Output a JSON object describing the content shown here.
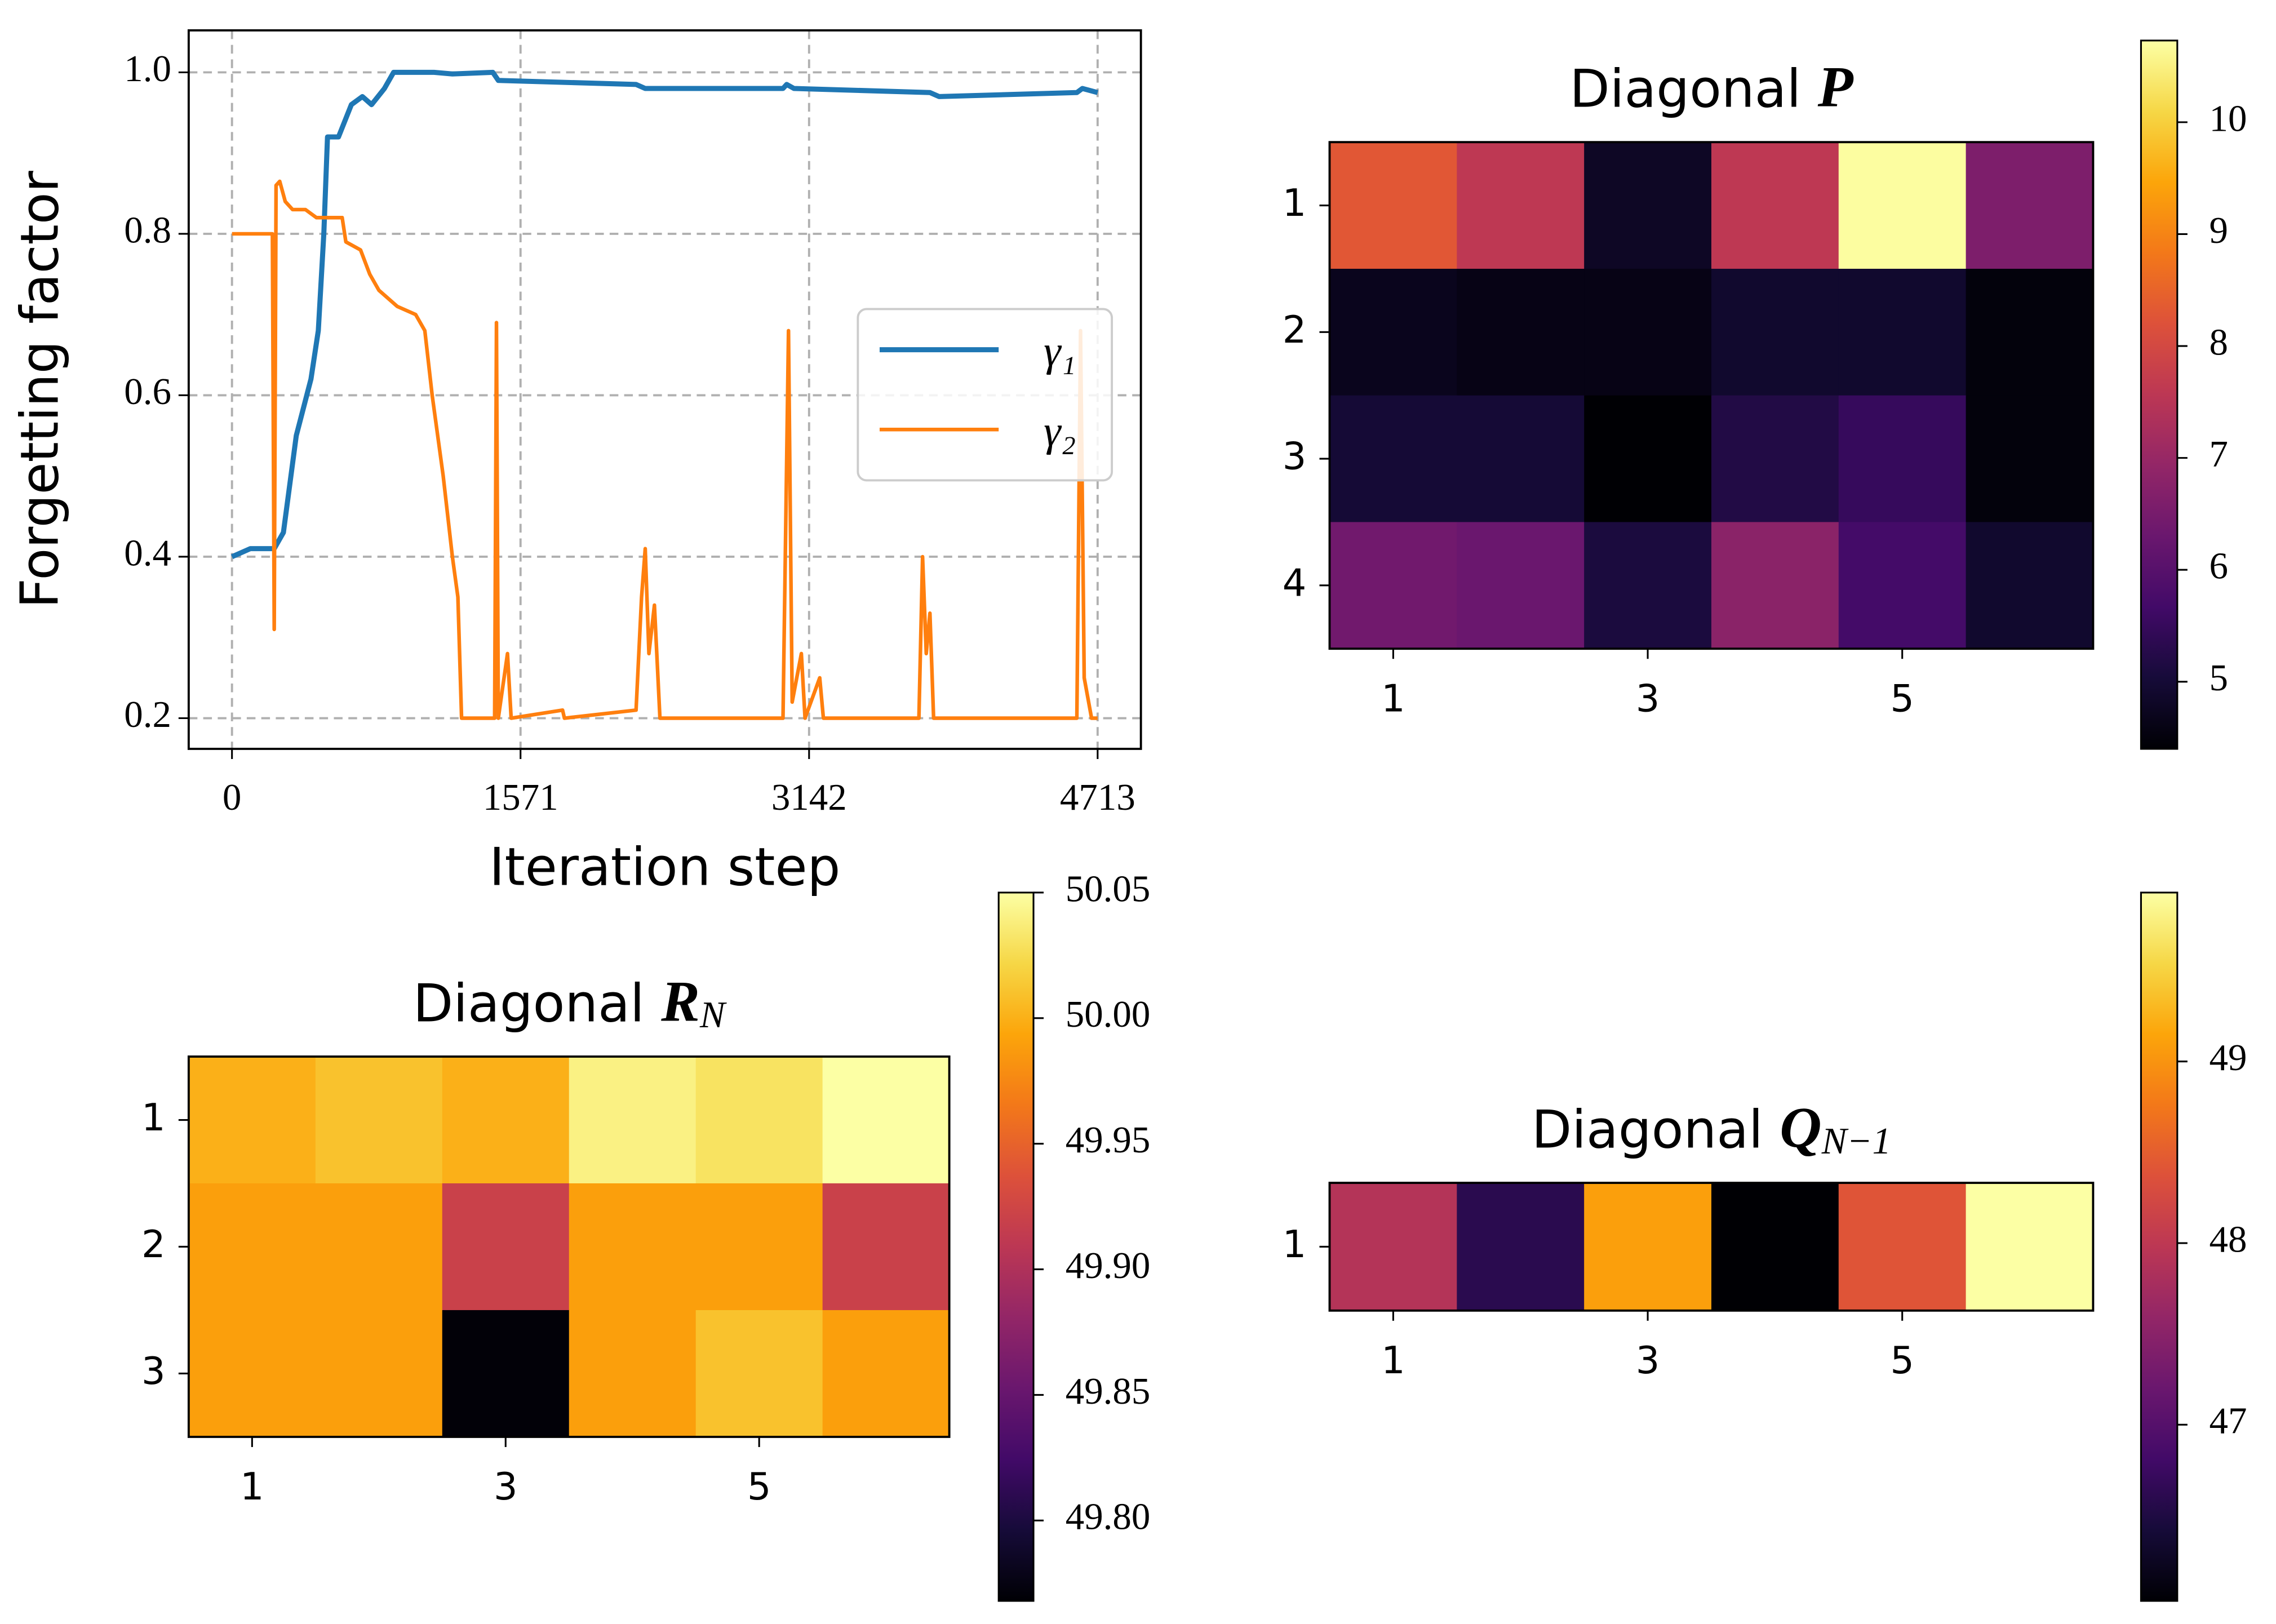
{
  "chart_data": [
    {
      "type": "line",
      "xlabel": "Iteration step",
      "ylabel": "Forgetting factor",
      "xlim": [
        -235.65,
        4948.65
      ],
      "ylim": [
        0.162,
        1.052
      ],
      "xticks": [
        0,
        1571,
        3142,
        4713
      ],
      "yticks": [
        0.2,
        0.4,
        0.6,
        0.8,
        {
          "value": 1,
          "label": "1.0"
        }
      ],
      "grid": true,
      "legend": "right",
      "series": [
        {
          "name": "γ₁",
          "color": "#1f77b4",
          "x": [
            0,
            100,
            230,
            280,
            350,
            430,
            470,
            500,
            520,
            580,
            650,
            710,
            760,
            830,
            880,
            1100,
            1200,
            1420,
            1450,
            2200,
            2250,
            3000,
            3020,
            3060,
            3800,
            3850,
            4600,
            4630,
            4713
          ],
          "values": [
            0.4,
            0.41,
            0.41,
            0.43,
            0.55,
            0.62,
            0.68,
            0.8,
            0.92,
            0.92,
            0.96,
            0.97,
            0.96,
            0.98,
            1.0,
            1.0,
            0.998,
            1.0,
            0.99,
            0.985,
            0.98,
            0.98,
            0.985,
            0.98,
            0.975,
            0.97,
            0.975,
            0.98,
            0.975
          ]
        },
        {
          "name": "γ₂",
          "color": "#ff7f0e",
          "x": [
            0,
            200,
            220,
            230,
            240,
            260,
            290,
            330,
            400,
            460,
            600,
            620,
            700,
            750,
            800,
            900,
            1000,
            1050,
            1090,
            1150,
            1200,
            1230,
            1250,
            1430,
            1440,
            1450,
            1500,
            1520,
            1800,
            1810,
            2200,
            2230,
            2250,
            2270,
            2300,
            2330,
            2500,
            3000,
            3030,
            3050,
            3100,
            3120,
            3200,
            3220,
            3500,
            3740,
            3760,
            3780,
            3800,
            3820,
            4000,
            4600,
            4620,
            4640,
            4680,
            4713
          ],
          "values": [
            0.8,
            0.8,
            0.8,
            0.31,
            0.86,
            0.865,
            0.84,
            0.83,
            0.83,
            0.82,
            0.82,
            0.79,
            0.78,
            0.75,
            0.73,
            0.71,
            0.7,
            0.68,
            0.6,
            0.5,
            0.4,
            0.35,
            0.2,
            0.2,
            0.69,
            0.2,
            0.28,
            0.2,
            0.21,
            0.2,
            0.21,
            0.35,
            0.41,
            0.28,
            0.34,
            0.2,
            0.2,
            0.2,
            0.68,
            0.22,
            0.28,
            0.2,
            0.25,
            0.2,
            0.2,
            0.2,
            0.4,
            0.28,
            0.33,
            0.2,
            0.2,
            0.2,
            0.68,
            0.25,
            0.2,
            0.2
          ]
        }
      ]
    },
    {
      "type": "heatmap",
      "title": "Diagonal",
      "title_symbol": "P",
      "colormap": "inferno",
      "xlim": [
        0.5,
        6.5
      ],
      "xticks": [
        1,
        3,
        5
      ],
      "yticks": [
        1,
        2,
        3,
        4
      ],
      "clim": [
        4.4,
        10.73
      ],
      "cticks": [
        5,
        6,
        7,
        8,
        9,
        10
      ],
      "values": [
        [
          8.3,
          7.6,
          4.8,
          7.6,
          10.7,
          6.6
        ],
        [
          4.7,
          4.6,
          4.6,
          4.9,
          4.9,
          4.5
        ],
        [
          5.0,
          5.0,
          4.4,
          5.2,
          5.5,
          4.5
        ],
        [
          6.4,
          6.3,
          5.1,
          6.8,
          5.7,
          4.9
        ]
      ]
    },
    {
      "type": "heatmap",
      "title": "Diagonal",
      "title_symbol": "R",
      "title_subscript": "N",
      "colormap": "inferno",
      "xlim": [
        0.5,
        6.5
      ],
      "xticks": [
        1,
        3,
        5
      ],
      "yticks": [
        1,
        2,
        3
      ],
      "clim": [
        49.768,
        50.05
      ],
      "cticks": [
        {
          "value": 49.8,
          "label": "49.80"
        },
        49.85,
        {
          "value": 49.9,
          "label": "49.90"
        },
        49.95,
        {
          "value": 50,
          "label": "50.00"
        },
        50.05
      ],
      "values": [
        [
          50.0,
          50.01,
          50.0,
          50.04,
          50.03,
          50.05
        ],
        [
          49.99,
          49.99,
          49.92,
          49.99,
          49.99,
          49.92
        ],
        [
          49.99,
          49.99,
          49.77,
          49.99,
          50.01,
          49.99
        ]
      ]
    },
    {
      "type": "heatmap",
      "title": "Diagonal",
      "title_symbol": "Q",
      "title_subscript": "N−1",
      "colormap": "inferno",
      "xlim": [
        0.5,
        6.5
      ],
      "xticks": [
        1,
        3,
        5
      ],
      "yticks": [
        1
      ],
      "clim": [
        46.03,
        49.93
      ],
      "cticks": [
        47,
        48,
        49
      ],
      "values": [
        [
          47.9,
          46.6,
          49.1,
          46.03,
          48.4,
          49.93
        ]
      ]
    }
  ]
}
